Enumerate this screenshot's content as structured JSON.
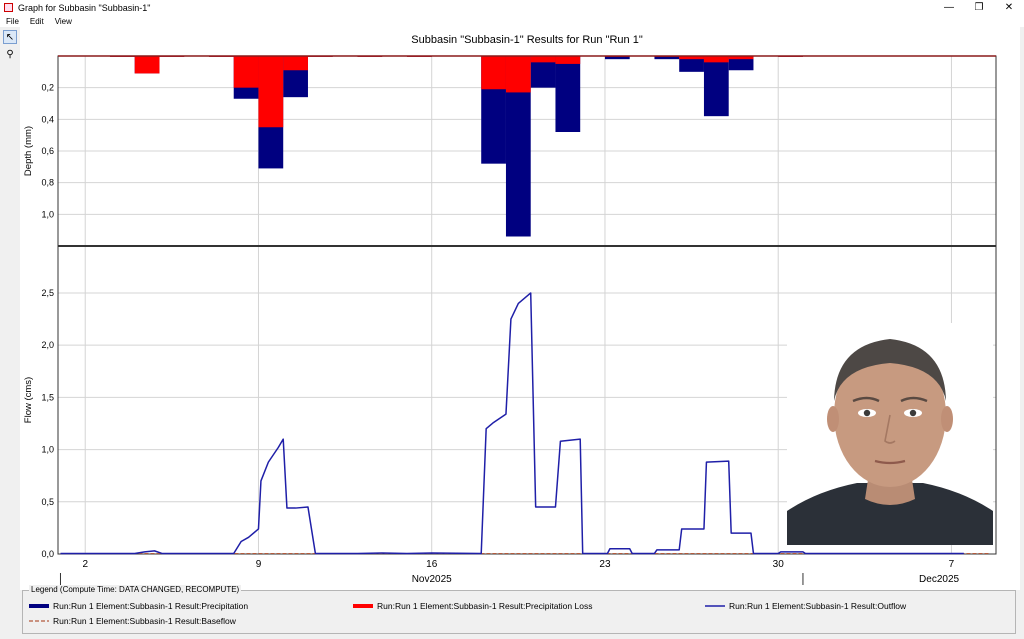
{
  "window": {
    "title": "Graph for Subbasin \"Subbasin-1\"",
    "minimize": "—",
    "restore": "❐",
    "close": "✕"
  },
  "menu": [
    "File",
    "Edit",
    "View"
  ],
  "tools": [
    {
      "name": "pointer",
      "glyph": "↖"
    },
    {
      "name": "zoom",
      "glyph": "⚲"
    }
  ],
  "chart_data": {
    "type": "bar",
    "title": "Subbasin \"Subbasin-1\" Results for Run \"Run 1\"",
    "x_ticks": [
      {
        "label": "2",
        "day": 2
      },
      {
        "label": "9",
        "day": 9
      },
      {
        "label": "16",
        "day": 16
      },
      {
        "label": "23",
        "day": 23
      },
      {
        "label": "30",
        "day": 30
      },
      {
        "label": "7",
        "day": 37
      }
    ],
    "month_labels": [
      {
        "label": "Nov2025",
        "day": 16
      },
      {
        "label": "Dec2025",
        "day": 36.5
      }
    ],
    "month_separators": [
      1,
      31
    ],
    "xlim": [
      0.9,
      38.8
    ],
    "top_panel": {
      "ylabel": "Depth (mm)",
      "ylim": [
        0,
        1.2
      ],
      "inverted": true,
      "yticks": [
        "0,2",
        "0,4",
        "0,6",
        "0,8",
        "1,0"
      ],
      "ytick_values": [
        0.2,
        0.4,
        0.6,
        0.8,
        1.0
      ],
      "precip_color": "#000080",
      "loss_color": "#ff0000",
      "bars": [
        {
          "x0": 3.0,
          "x1": 4.0,
          "precip": 0.005,
          "loss": 0.005
        },
        {
          "x0": 4.0,
          "x1": 5.0,
          "precip": 0.11,
          "loss": 0.11
        },
        {
          "x0": 5.0,
          "x1": 6.0,
          "precip": 0.005,
          "loss": 0.005
        },
        {
          "x0": 7.0,
          "x1": 8.0,
          "precip": 0.005,
          "loss": 0.005
        },
        {
          "x0": 8.0,
          "x1": 9.0,
          "precip": 0.27,
          "loss": 0.2
        },
        {
          "x0": 9.0,
          "x1": 10.0,
          "precip": 0.71,
          "loss": 0.45
        },
        {
          "x0": 10.0,
          "x1": 11.0,
          "precip": 0.26,
          "loss": 0.09
        },
        {
          "x0": 11.0,
          "x1": 12.0,
          "precip": 0.005,
          "loss": 0.005
        },
        {
          "x0": 13.0,
          "x1": 14.0,
          "precip": 0.005,
          "loss": 0.005
        },
        {
          "x0": 15.0,
          "x1": 16.0,
          "precip": 0.005,
          "loss": 0.005
        },
        {
          "x0": 18.0,
          "x1": 19.0,
          "precip": 0.68,
          "loss": 0.21
        },
        {
          "x0": 19.0,
          "x1": 20.0,
          "precip": 1.14,
          "loss": 0.23
        },
        {
          "x0": 20.0,
          "x1": 21.0,
          "precip": 0.2,
          "loss": 0.04
        },
        {
          "x0": 21.0,
          "x1": 22.0,
          "precip": 0.48,
          "loss": 0.05
        },
        {
          "x0": 23.0,
          "x1": 24.0,
          "precip": 0.02,
          "loss": 0.005
        },
        {
          "x0": 25.0,
          "x1": 26.0,
          "precip": 0.02,
          "loss": 0.005
        },
        {
          "x0": 26.0,
          "x1": 27.0,
          "precip": 0.1,
          "loss": 0.02
        },
        {
          "x0": 27.0,
          "x1": 28.0,
          "precip": 0.38,
          "loss": 0.04
        },
        {
          "x0": 28.0,
          "x1": 29.0,
          "precip": 0.09,
          "loss": 0.02
        },
        {
          "x0": 30.0,
          "x1": 31.0,
          "precip": 0.005,
          "loss": 0.005
        }
      ]
    },
    "bottom_panel": {
      "ylabel": "Flow (cms)",
      "ylim": [
        0,
        2.95
      ],
      "yticks": [
        "0,0",
        "0,5",
        "1,0",
        "1,5",
        "2,0",
        "2,5"
      ],
      "ytick_values": [
        0,
        0.5,
        1.0,
        1.5,
        2.0,
        2.5
      ],
      "outflow_color": "#1f1fa8",
      "baseflow_color": "#b35a3c",
      "outflow": [
        [
          1.0,
          0.005
        ],
        [
          4.0,
          0.005
        ],
        [
          4.4,
          0.02
        ],
        [
          4.8,
          0.03
        ],
        [
          5.1,
          0.005
        ],
        [
          8.0,
          0.005
        ],
        [
          8.3,
          0.12
        ],
        [
          8.6,
          0.16
        ],
        [
          9.0,
          0.24
        ],
        [
          9.1,
          0.7
        ],
        [
          9.4,
          0.88
        ],
        [
          9.8,
          1.02
        ],
        [
          10.0,
          1.1
        ],
        [
          10.15,
          0.44
        ],
        [
          10.5,
          0.44
        ],
        [
          11.0,
          0.45
        ],
        [
          11.3,
          0.005
        ],
        [
          12.0,
          0.005
        ],
        [
          13.0,
          0.005
        ],
        [
          14.0,
          0.01
        ],
        [
          15.0,
          0.005
        ],
        [
          16.0,
          0.01
        ],
        [
          18.0,
          0.005
        ],
        [
          18.2,
          1.2
        ],
        [
          18.5,
          1.26
        ],
        [
          19.0,
          1.34
        ],
        [
          19.2,
          2.25
        ],
        [
          19.5,
          2.4
        ],
        [
          20.0,
          2.5
        ],
        [
          20.2,
          0.45
        ],
        [
          21.0,
          0.45
        ],
        [
          21.2,
          1.08
        ],
        [
          22.0,
          1.1
        ],
        [
          22.1,
          0.005
        ],
        [
          23.1,
          0.005
        ],
        [
          23.2,
          0.05
        ],
        [
          24.0,
          0.05
        ],
        [
          24.1,
          0.005
        ],
        [
          25.0,
          0.005
        ],
        [
          25.1,
          0.04
        ],
        [
          26.0,
          0.04
        ],
        [
          26.1,
          0.24
        ],
        [
          27.0,
          0.24
        ],
        [
          27.1,
          0.88
        ],
        [
          28.0,
          0.89
        ],
        [
          28.1,
          0.2
        ],
        [
          28.9,
          0.2
        ],
        [
          29.0,
          0.005
        ],
        [
          30.0,
          0.005
        ],
        [
          30.1,
          0.02
        ],
        [
          31.0,
          0.02
        ],
        [
          31.1,
          0.005
        ],
        [
          37.5,
          0.005
        ]
      ],
      "baseflow": [
        [
          1.0,
          0.005
        ],
        [
          38.5,
          0.005
        ]
      ]
    },
    "legend": {
      "title": "Legend (Compute Time: DATA CHANGED, RECOMPUTE)",
      "entries": [
        {
          "label": "Run:Run 1 Element:Subbasin-1 Result:Precipitation",
          "color": "#000080",
          "style": "solid-thick"
        },
        {
          "label": "Run:Run 1 Element:Subbasin-1 Result:Precipitation Loss",
          "color": "#ff0000",
          "style": "solid-thick"
        },
        {
          "label": "Run:Run 1 Element:Subbasin-1 Result:Outflow",
          "color": "#1f1fa8",
          "style": "solid-thin"
        },
        {
          "label": "Run:Run 1 Element:Subbasin-1 Result:Baseflow",
          "color": "#b35a3c",
          "style": "dashed"
        }
      ]
    }
  }
}
